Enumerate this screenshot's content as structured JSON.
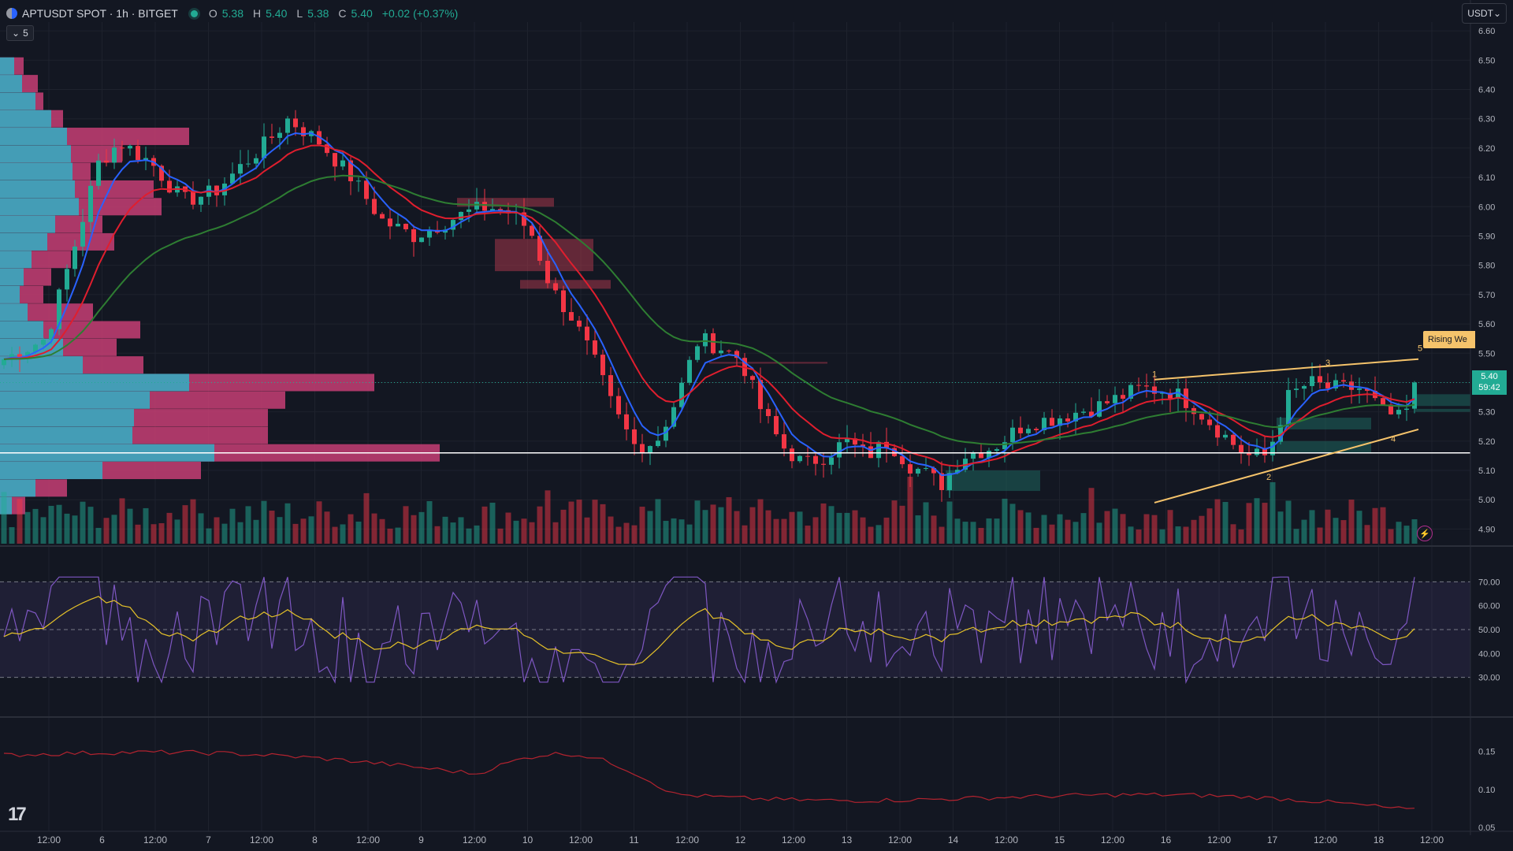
{
  "header": {
    "symbol": "APTUSDT SPOT · 1h · BITGET",
    "open_label": "O",
    "open": "5.38",
    "high_label": "H",
    "high": "5.40",
    "low_label": "L",
    "low": "5.38",
    "close_label": "C",
    "close": "5.40",
    "change": "+0.02 (+0.37%)",
    "collapse_count": "5",
    "currency": "USDT"
  },
  "price_tag": {
    "price": "5.40",
    "countdown": "59:42"
  },
  "pattern_label": "Rising We",
  "colors": {
    "up": "#22ab94",
    "down": "#f23645",
    "background": "#131722",
    "rsi": "#7e57c2",
    "rsi_ma": "#e6c229",
    "wedge": "#f5c36b"
  },
  "chart_data": {
    "type": "candlestick",
    "price_axis": {
      "ticks": [
        "6.60",
        "6.50",
        "6.40",
        "6.30",
        "6.20",
        "6.10",
        "6.00",
        "5.90",
        "5.80",
        "5.70",
        "5.60",
        "5.50",
        "5.40",
        "5.30",
        "5.20",
        "5.10",
        "5.00",
        "4.90"
      ],
      "range": [
        4.85,
        6.63
      ]
    },
    "time_axis": [
      "12:00",
      "6",
      "12:00",
      "7",
      "12:00",
      "8",
      "12:00",
      "9",
      "12:00",
      "10",
      "12:00",
      "11",
      "12:00",
      "12",
      "12:00",
      "13",
      "12:00",
      "14",
      "12:00",
      "15",
      "12:00",
      "16",
      "12:00",
      "17",
      "12:00",
      "18",
      "12:00"
    ],
    "close_path": [
      [
        0,
        5.48
      ],
      [
        4,
        5.55
      ],
      [
        7,
        5.9
      ],
      [
        9,
        6.15
      ],
      [
        11,
        6.22
      ],
      [
        14,
        6.15
      ],
      [
        17,
        6.02
      ],
      [
        20,
        6.05
      ],
      [
        22,
        6.12
      ],
      [
        25,
        6.22
      ],
      [
        27,
        6.3
      ],
      [
        30,
        6.22
      ],
      [
        33,
        6.1
      ],
      [
        36,
        5.95
      ],
      [
        39,
        5.9
      ],
      [
        42,
        5.95
      ],
      [
        44,
        5.98
      ],
      [
        46,
        6.0
      ],
      [
        48,
        5.98
      ],
      [
        50,
        5.92
      ],
      [
        52,
        5.72
      ],
      [
        54,
        5.62
      ],
      [
        56,
        5.48
      ],
      [
        58,
        5.3
      ],
      [
        60,
        5.18
      ],
      [
        62,
        5.2
      ],
      [
        64,
        5.35
      ],
      [
        66,
        5.55
      ],
      [
        68,
        5.52
      ],
      [
        70,
        5.48
      ],
      [
        72,
        5.3
      ],
      [
        74,
        5.18
      ],
      [
        76,
        5.12
      ],
      [
        78,
        5.15
      ],
      [
        80,
        5.2
      ],
      [
        82,
        5.15
      ],
      [
        84,
        5.2
      ],
      [
        86,
        5.12
      ],
      [
        88,
        5.08
      ],
      [
        89,
        5.05
      ],
      [
        91,
        5.15
      ],
      [
        94,
        5.18
      ],
      [
        97,
        5.26
      ],
      [
        100,
        5.28
      ],
      [
        104,
        5.32
      ],
      [
        108,
        5.38
      ],
      [
        111,
        5.37
      ],
      [
        113,
        5.32
      ],
      [
        115,
        5.25
      ],
      [
        118,
        5.15
      ],
      [
        120,
        5.15
      ],
      [
        122,
        5.35
      ],
      [
        124,
        5.4
      ],
      [
        126,
        5.38
      ],
      [
        129,
        5.38
      ],
      [
        131,
        5.3
      ],
      [
        133,
        5.27
      ],
      [
        134,
        5.4
      ]
    ],
    "current_price": 5.4,
    "support_line": 5.16,
    "rsi": {
      "ticks": [
        "70.00",
        "60.00",
        "50.00",
        "40.00",
        "30.00"
      ],
      "upper": 70,
      "lower": 30
    },
    "lower_indicator": {
      "ticks": [
        "0.15",
        "0.10",
        "0.05"
      ]
    },
    "wedge_points": [
      "1",
      "2",
      "3",
      "4",
      "5"
    ]
  }
}
